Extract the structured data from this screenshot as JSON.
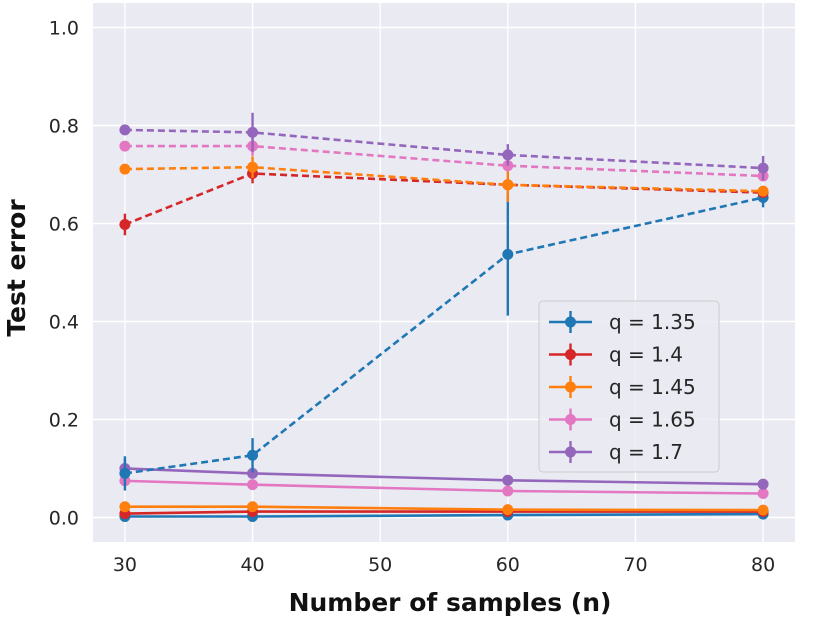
{
  "chart_data": {
    "type": "line",
    "title": "",
    "xlabel": "Number of samples (n)",
    "ylabel": "Test error",
    "x": [
      30,
      40,
      60,
      80
    ],
    "xlim": [
      27.5,
      82.5
    ],
    "ylim": [
      -0.05,
      1.05
    ],
    "xticks": [
      30,
      40,
      50,
      60,
      70,
      80
    ],
    "yticks": [
      0.0,
      0.2,
      0.4,
      0.6,
      0.8,
      1.0
    ],
    "xtick_labels": [
      "30",
      "40",
      "50",
      "60",
      "70",
      "80"
    ],
    "ytick_labels": [
      "0.0",
      "0.2",
      "0.4",
      "0.6",
      "0.8",
      "1.0"
    ],
    "grid": true,
    "legend_position": "center-right",
    "series": [
      {
        "name": "q = 1.35",
        "color": "#1f77b4",
        "style": "dashed",
        "values": [
          0.09,
          0.127,
          0.537,
          0.653
        ],
        "errors": [
          0.035,
          0.035,
          0.125,
          0.02
        ],
        "show_in_legend": true
      },
      {
        "name": "q = 1.4",
        "color": "#d62728",
        "style": "dashed",
        "values": [
          0.598,
          0.702,
          0.679,
          0.663
        ],
        "errors": [
          0.022,
          0.02,
          0.012,
          0.008
        ],
        "show_in_legend": true
      },
      {
        "name": "q = 1.45",
        "color": "#ff7f0e",
        "style": "dashed",
        "values": [
          0.711,
          0.715,
          0.679,
          0.666
        ],
        "errors": [
          0.008,
          0.022,
          0.035,
          0.01
        ],
        "show_in_legend": true
      },
      {
        "name": "q = 1.65",
        "color": "#e377c2",
        "style": "dashed",
        "values": [
          0.758,
          0.758,
          0.718,
          0.697
        ],
        "errors": [
          0.006,
          0.02,
          0.012,
          0.008
        ],
        "show_in_legend": true
      },
      {
        "name": "q = 1.7",
        "color": "#9467bd",
        "style": "dashed",
        "values": [
          0.791,
          0.786,
          0.74,
          0.713
        ],
        "errors": [
          0.006,
          0.04,
          0.022,
          0.025
        ],
        "show_in_legend": true
      },
      {
        "name": "q = 1.35",
        "color": "#1f77b4",
        "style": "solid",
        "values": [
          0.002,
          0.002,
          0.005,
          0.007
        ],
        "errors": [
          0,
          0,
          0,
          0
        ],
        "show_in_legend": false
      },
      {
        "name": "q = 1.4",
        "color": "#d62728",
        "style": "solid",
        "values": [
          0.008,
          0.012,
          0.012,
          0.012
        ],
        "errors": [
          0,
          0,
          0,
          0
        ],
        "show_in_legend": false
      },
      {
        "name": "q = 1.45",
        "color": "#ff7f0e",
        "style": "solid",
        "values": [
          0.022,
          0.022,
          0.016,
          0.015
        ],
        "errors": [
          0,
          0,
          0,
          0
        ],
        "show_in_legend": false
      },
      {
        "name": "q = 1.65",
        "color": "#e377c2",
        "style": "solid",
        "values": [
          0.075,
          0.067,
          0.054,
          0.049
        ],
        "errors": [
          0,
          0,
          0,
          0
        ],
        "show_in_legend": false
      },
      {
        "name": "q = 1.7",
        "color": "#9467bd",
        "style": "solid",
        "values": [
          0.1,
          0.09,
          0.076,
          0.068
        ],
        "errors": [
          0.02,
          0,
          0,
          0
        ],
        "show_in_legend": false
      }
    ]
  }
}
